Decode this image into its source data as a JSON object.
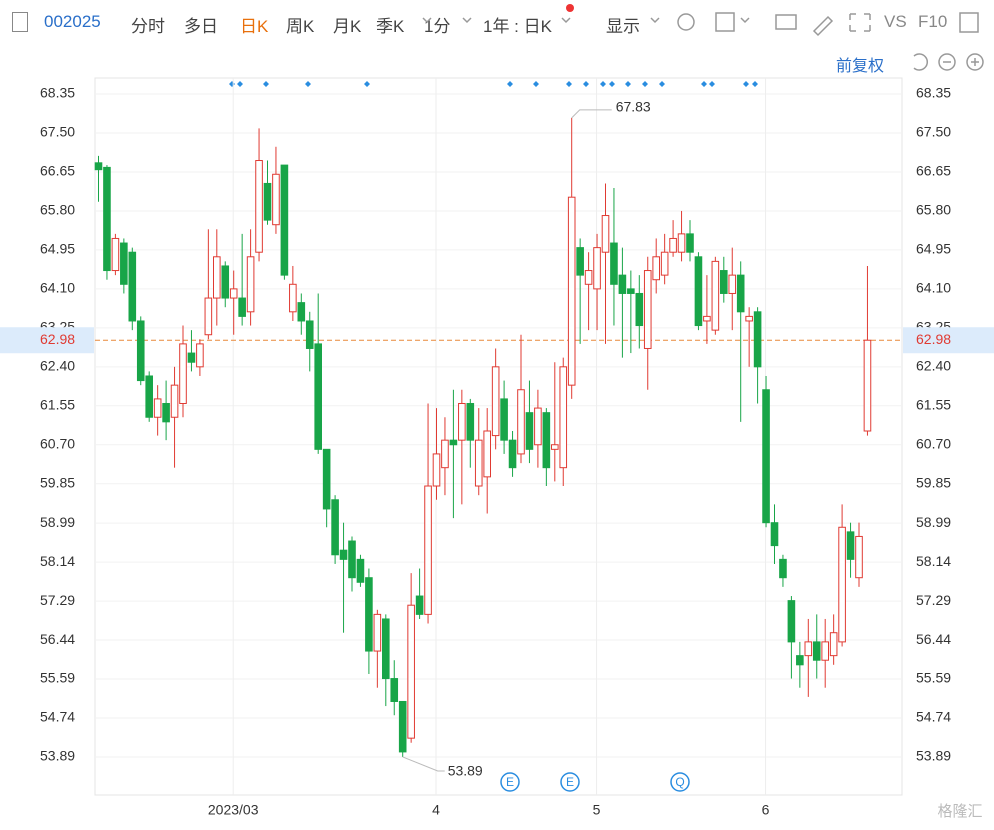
{
  "toolbar": {
    "code": "002025",
    "tabs": [
      "分时",
      "多日",
      "日K",
      "周K",
      "月K",
      "季K"
    ],
    "minute": "1分",
    "range": "1年 : 日K",
    "display": "显示",
    "vs": "VS",
    "f10": "F10",
    "adjust": "前复权"
  },
  "watermark": "格隆汇",
  "chart_data": {
    "type": "candlestick",
    "categories": [
      null,
      null,
      null,
      null,
      null,
      null,
      null,
      null,
      null,
      null,
      null,
      null,
      null,
      null,
      null,
      null,
      "2023/03",
      null,
      null,
      null,
      null,
      null,
      null,
      null,
      null,
      null,
      null,
      null,
      null,
      null,
      null,
      null,
      null,
      null,
      null,
      null,
      null,
      null,
      null,
      null,
      "4",
      null,
      null,
      null,
      null,
      null,
      null,
      null,
      null,
      null,
      null,
      null,
      null,
      null,
      null,
      null,
      null,
      null,
      null,
      "5",
      null,
      null,
      null,
      null,
      null,
      null,
      null,
      null,
      null,
      null,
      null,
      null,
      null,
      null,
      null,
      null,
      null,
      null,
      null,
      "6",
      null,
      null,
      null,
      null,
      null,
      null,
      null,
      null,
      null,
      null,
      null,
      null
    ],
    "open": [
      66.85,
      66.75,
      64.5,
      65.1,
      64.9,
      63.4,
      62.2,
      61.3,
      61.6,
      61.3,
      61.6,
      62.7,
      62.4,
      63.1,
      63.9,
      64.6,
      63.9,
      63.9,
      63.6,
      64.9,
      66.4,
      65.5,
      66.8,
      63.6,
      63.8,
      63.4,
      62.9,
      60.6,
      59.5,
      58.4,
      58.6,
      58.2,
      57.8,
      56.2,
      56.9,
      55.6,
      55.1,
      54.3,
      57.4,
      57.0,
      59.8,
      60.2,
      60.8,
      60.8,
      61.6,
      59.8,
      60.0,
      60.9,
      61.7,
      60.8,
      60.5,
      61.4,
      60.7,
      61.4,
      60.6,
      60.2,
      62.0,
      65.0,
      64.2,
      64.1,
      64.9,
      65.1,
      64.4,
      64.1,
      64.0,
      62.8,
      64.3,
      64.4,
      64.9,
      64.9,
      65.3,
      64.8,
      63.4,
      63.2,
      64.5,
      64.0,
      64.4,
      63.4,
      63.6,
      61.9,
      59.0,
      58.2,
      57.3,
      56.1,
      56.1,
      56.4,
      56.0,
      56.1,
      56.4,
      58.8,
      57.8,
      61.0
    ],
    "high": [
      67.0,
      66.8,
      65.3,
      65.2,
      65.0,
      63.5,
      62.3,
      62.0,
      62.1,
      62.4,
      63.3,
      63.2,
      63.0,
      65.4,
      65.4,
      64.7,
      64.5,
      65.3,
      65.4,
      67.6,
      66.9,
      67.2,
      66.8,
      64.6,
      64.0,
      63.6,
      64.0,
      60.6,
      59.6,
      59.0,
      58.7,
      58.3,
      58.0,
      57.1,
      57.0,
      56.0,
      55.1,
      57.9,
      58.0,
      61.6,
      61.5,
      61.3,
      61.9,
      61.9,
      61.7,
      61.5,
      61.5,
      62.8,
      62.1,
      61.0,
      63.1,
      62.1,
      61.9,
      61.5,
      62.5,
      62.6,
      67.83,
      65.2,
      64.9,
      65.3,
      66.4,
      66.3,
      65.0,
      64.5,
      64.4,
      64.8,
      65.2,
      65.3,
      65.6,
      65.8,
      65.6,
      64.9,
      64.4,
      64.8,
      64.8,
      65.0,
      64.7,
      63.7,
      63.7,
      62.2,
      59.4,
      58.3,
      57.4,
      56.4,
      56.9,
      57.0,
      56.9,
      57.0,
      59.4,
      59.0,
      59.0,
      64.6
    ],
    "low": [
      66.0,
      64.3,
      64.4,
      64.0,
      63.2,
      62.0,
      61.2,
      60.9,
      60.8,
      60.2,
      61.3,
      62.3,
      62.2,
      63.0,
      63.3,
      63.7,
      63.1,
      63.3,
      63.3,
      64.7,
      65.5,
      65.3,
      64.3,
      63.4,
      63.1,
      62.3,
      60.5,
      58.9,
      58.1,
      56.6,
      57.5,
      57.6,
      55.7,
      55.4,
      55.0,
      54.8,
      53.89,
      54.2,
      56.9,
      56.8,
      59.5,
      59.6,
      59.1,
      59.4,
      60.2,
      59.6,
      59.2,
      60.6,
      60.5,
      60.0,
      60.3,
      60.3,
      60.2,
      59.8,
      59.9,
      59.8,
      61.7,
      62.9,
      63.2,
      63.2,
      62.9,
      63.3,
      62.6,
      62.7,
      62.8,
      61.9,
      64.0,
      64.2,
      64.8,
      64.7,
      64.7,
      63.2,
      62.9,
      63.1,
      63.8,
      63.2,
      61.2,
      62.4,
      61.6,
      58.9,
      58.1,
      57.6,
      55.6,
      55.4,
      55.2,
      55.6,
      55.4,
      55.9,
      56.3,
      57.8,
      57.6,
      60.9
    ],
    "close": [
      66.7,
      64.5,
      65.2,
      64.2,
      63.4,
      62.1,
      61.3,
      61.7,
      61.2,
      62.0,
      62.9,
      62.5,
      62.9,
      63.9,
      64.8,
      63.9,
      64.1,
      63.5,
      64.8,
      66.9,
      65.6,
      66.6,
      64.4,
      64.2,
      63.4,
      62.8,
      60.6,
      59.3,
      58.3,
      58.2,
      57.8,
      57.7,
      56.2,
      57.0,
      55.6,
      55.1,
      54.0,
      57.2,
      57.0,
      59.8,
      60.5,
      60.8,
      60.7,
      61.6,
      60.8,
      60.8,
      61.0,
      62.4,
      60.8,
      60.2,
      61.9,
      60.6,
      61.5,
      60.2,
      60.7,
      62.4,
      66.1,
      64.4,
      64.5,
      65.0,
      65.7,
      64.2,
      64.0,
      64.0,
      63.3,
      64.5,
      64.8,
      64.9,
      65.2,
      65.3,
      64.9,
      63.3,
      63.5,
      64.7,
      64.0,
      64.4,
      63.6,
      63.5,
      62.4,
      59.0,
      58.5,
      57.8,
      56.4,
      55.9,
      56.4,
      56.0,
      56.4,
      56.6,
      58.9,
      58.2,
      58.7,
      62.98
    ],
    "up_color": "#e03a32",
    "down_color": "#18a548",
    "ylim": [
      53.06,
      68.7
    ],
    "yticks": [
      68.35,
      {
        "value": 67.5,
        "label": "67.50"
      },
      66.65,
      {
        "value": 65.8,
        "label": "65.80"
      },
      64.95,
      {
        "value": 64.1,
        "label": "64.10"
      },
      63.25,
      {
        "value": 62.4,
        "label": "62.40"
      },
      61.55,
      {
        "value": 60.7,
        "label": "60.70"
      },
      59.85,
      58.99,
      58.14,
      57.29,
      56.44,
      55.59,
      54.74,
      53.89
    ],
    "last_price": 62.98,
    "max_label": 67.83,
    "min_label": 53.89,
    "event_markers": [
      "E",
      "E",
      "Q"
    ],
    "grid": true
  }
}
